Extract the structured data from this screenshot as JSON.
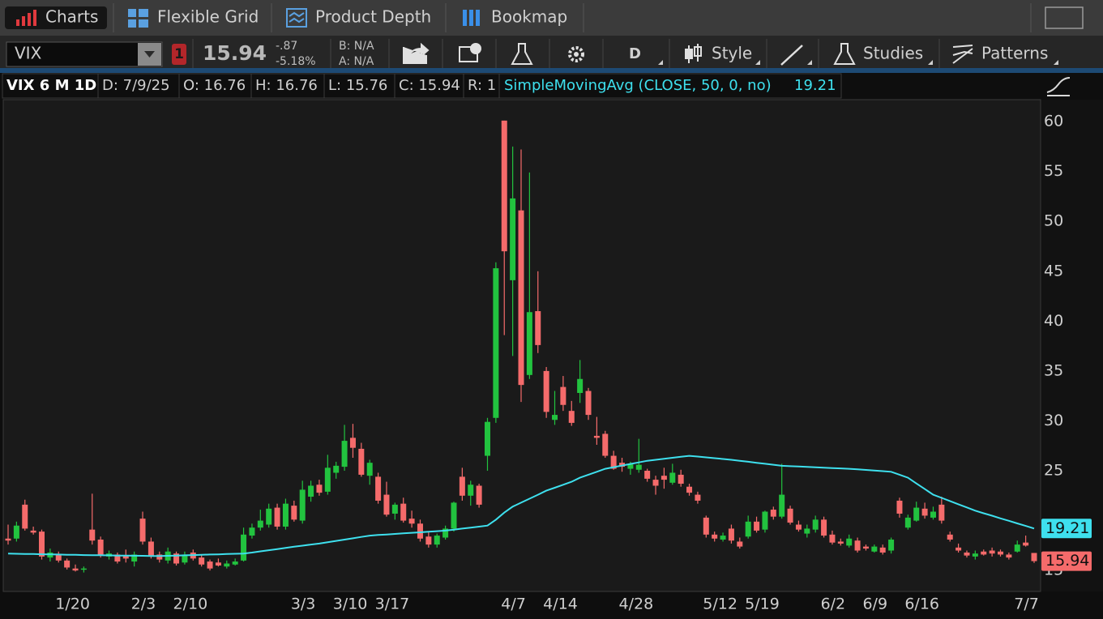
{
  "tabs": [
    "Charts",
    "Flexible Grid",
    "Product Depth",
    "Bookmap"
  ],
  "toolbar": {
    "symbol": "VIX",
    "alert_count": "1",
    "last": "15.94",
    "change": "-.87",
    "change_pct": "-5.18%",
    "bid": "B: N/A",
    "ask": "A: N/A",
    "aggregation": "D",
    "style": "Style",
    "studies": "Studies",
    "patterns": "Patterns"
  },
  "info": {
    "label": "VIX 6 M 1D",
    "date": "D: 7/9/25",
    "open": "O: 16.76",
    "high": "H: 16.76",
    "low": "L: 15.76",
    "close": "C: 15.94",
    "range": "R: 1",
    "study": "SimpleMovingAvg (CLOSE, 50, 0, no)",
    "study_value": "19.21"
  },
  "chart_data": {
    "type": "candlestick",
    "categories": [
      null,
      null,
      null,
      null,
      null,
      null,
      "1/20",
      null,
      null,
      null,
      null,
      null,
      null,
      null,
      null,
      "2/3",
      null,
      null,
      null,
      null,
      "2/10",
      null,
      null,
      null,
      null,
      null,
      null,
      null,
      null,
      null,
      null,
      null,
      null,
      null,
      "3/3",
      null,
      null,
      null,
      null,
      "3/10",
      null,
      null,
      null,
      null,
      "3/17",
      null,
      null,
      null,
      null,
      null,
      null,
      null,
      null,
      null,
      null,
      null,
      null,
      null,
      null,
      "4/7",
      null,
      null,
      null,
      null,
      "4/14",
      null,
      null,
      null,
      null,
      null,
      null,
      null,
      null,
      "4/28",
      null,
      null,
      null,
      null,
      null,
      null,
      null,
      null,
      null,
      "5/12",
      null,
      null,
      null,
      null,
      "5/19",
      null,
      null,
      null,
      null,
      null,
      null,
      null,
      null,
      "6/2",
      null,
      null,
      null,
      null,
      "6/9",
      null,
      null,
      null,
      null,
      "6/16",
      null,
      null,
      null,
      null,
      null,
      null,
      null,
      null,
      null,
      null,
      null,
      null,
      "7/7",
      null,
      null
    ],
    "open": [
      18.2,
      18.2,
      21.6,
      19.0,
      18.9,
      16.3,
      16.6,
      16.0,
      15.2,
      15.1,
      19.1,
      18.1,
      16.4,
      16.6,
      16.5,
      15.9,
      20.2,
      17.9,
      16.6,
      16.0,
      16.7,
      15.8,
      16.8,
      16.3,
      15.9,
      15.8,
      15.4,
      15.6,
      16.0,
      18.5,
      19.3,
      19.6,
      21.3,
      19.4,
      21.5,
      20.0,
      22.4,
      23.6,
      22.9,
      24.8,
      25.4,
      28.3,
      27.2,
      24.5,
      24.4,
      22.6,
      20.7,
      21.7,
      20.2,
      19.7,
      18.4,
      17.6,
      18.3,
      19.2,
      24.4,
      22.5,
      23.5,
      26.5,
      30.3,
      60.1,
      44.1,
      51.1,
      34.6,
      41.0,
      35.0,
      30.1,
      33.4,
      31.0,
      32.8,
      33.0,
      28.5,
      28.7,
      26.5,
      25.8,
      25.2,
      25.1,
      25.0,
      24.1,
      24.5,
      23.8,
      24.6,
      23.4,
      22.6,
      20.3,
      18.6,
      18.1,
      19.2,
      17.9,
      18.4,
      19.9,
      19.1,
      21.1,
      20.4,
      21.2,
      19.6,
      18.7,
      19.1,
      20.1,
      18.6,
      17.9,
      17.5,
      18.0,
      17.4,
      16.9,
      17.3,
      17.0,
      22.0,
      19.3,
      20.0,
      21.2,
      20.3,
      21.6,
      18.6,
      17.3,
      16.8,
      16.4,
      16.9,
      17.0,
      16.9,
      16.6,
      16.9,
      17.8,
      16.76
    ],
    "high": [
      19.6,
      19.9,
      22.1,
      19.4,
      19.1,
      17.2,
      16.9,
      16.2,
      15.6,
      15.4,
      22.7,
      18.4,
      17.0,
      16.8,
      17.1,
      16.9,
      20.9,
      18.3,
      16.9,
      17.3,
      16.9,
      16.9,
      17.1,
      16.6,
      16.1,
      16.2,
      16.0,
      16.2,
      19.3,
      19.7,
      21.1,
      21.7,
      21.7,
      22.2,
      22.0,
      24.0,
      24.0,
      24.1,
      26.6,
      25.9,
      29.6,
      29.7,
      27.8,
      26.1,
      24.8,
      23.9,
      21.8,
      22.3,
      21.0,
      20.1,
      18.9,
      18.7,
      19.5,
      21.9,
      25.3,
      24.0,
      23.7,
      30.3,
      45.9,
      60.1,
      57.5,
      57.2,
      54.9,
      45.0,
      35.4,
      33.0,
      34.5,
      32.0,
      36.1,
      33.3,
      30.4,
      29.0,
      27.0,
      26.3,
      25.9,
      28.2,
      25.2,
      24.5,
      25.3,
      25.7,
      25.1,
      23.7,
      22.9,
      20.5,
      18.9,
      18.8,
      19.6,
      18.3,
      20.5,
      20.4,
      21.0,
      21.4,
      25.7,
      21.5,
      20.0,
      19.6,
      20.5,
      20.4,
      19.0,
      18.2,
      18.6,
      18.3,
      17.6,
      17.6,
      17.6,
      18.3,
      22.3,
      20.6,
      21.9,
      21.8,
      21.4,
      22.4,
      18.9,
      17.7,
      17.0,
      17.0,
      17.1,
      17.3,
      17.1,
      16.8,
      18.0,
      18.5,
      16.76
    ],
    "low": [
      17.6,
      17.9,
      19.0,
      18.6,
      16.1,
      15.9,
      15.8,
      15.1,
      14.9,
      14.8,
      17.6,
      16.3,
      16.1,
      15.7,
      15.8,
      15.4,
      17.6,
      16.2,
      15.8,
      15.7,
      15.5,
      15.6,
      16.0,
      15.4,
      15.0,
      15.4,
      15.2,
      15.5,
      15.9,
      18.2,
      19.0,
      19.3,
      19.1,
      19.1,
      19.9,
      19.7,
      21.9,
      22.5,
      22.6,
      24.2,
      25.0,
      26.3,
      24.4,
      23.6,
      21.7,
      20.4,
      20.1,
      19.8,
      19.3,
      17.9,
      17.3,
      17.3,
      18.1,
      18.9,
      22.0,
      21.5,
      21.3,
      25.0,
      29.8,
      38.6,
      36.5,
      31.9,
      34.2,
      36.8,
      30.3,
      29.6,
      31.0,
      29.5,
      31.8,
      30.1,
      27.6,
      26.3,
      25.1,
      24.9,
      24.6,
      24.8,
      23.9,
      22.6,
      23.2,
      23.6,
      23.4,
      22.5,
      21.7,
      18.3,
      17.9,
      17.9,
      17.7,
      17.2,
      18.2,
      18.8,
      18.8,
      20.1,
      20.2,
      19.6,
      18.9,
      18.3,
      18.8,
      18.3,
      17.6,
      17.5,
      17.3,
      16.8,
      17.0,
      16.8,
      16.6,
      16.7,
      20.3,
      19.1,
      19.9,
      20.2,
      20.1,
      19.7,
      17.9,
      16.8,
      16.3,
      16.1,
      16.5,
      16.4,
      16.4,
      16.1,
      16.8,
      17.4,
      15.76
    ],
    "close": [
      18.0,
      19.5,
      19.2,
      18.8,
      16.4,
      16.8,
      16.0,
      15.3,
      15.0,
      15.2,
      18.0,
      16.5,
      16.7,
      15.9,
      16.2,
      16.6,
      17.9,
      16.5,
      16.1,
      16.9,
      15.7,
      16.6,
      16.2,
      15.6,
      15.2,
      15.5,
      15.7,
      15.9,
      18.6,
      19.3,
      20.0,
      21.2,
      19.4,
      21.7,
      20.1,
      23.1,
      23.5,
      22.8,
      25.3,
      25.5,
      28.0,
      27.3,
      24.6,
      25.8,
      22.0,
      20.6,
      21.6,
      20.0,
      19.7,
      18.2,
      17.6,
      18.5,
      19.2,
      21.8,
      22.5,
      23.6,
      21.6,
      29.9,
      45.3,
      47.0,
      52.3,
      33.6,
      40.9,
      37.6,
      30.9,
      30.6,
      31.6,
      29.8,
      34.2,
      30.6,
      28.3,
      26.5,
      25.2,
      25.4,
      25.7,
      25.6,
      24.2,
      23.5,
      24.1,
      24.8,
      23.7,
      22.8,
      22.0,
      18.6,
      18.2,
      18.5,
      18.0,
      17.4,
      19.9,
      19.0,
      20.9,
      20.4,
      22.6,
      19.8,
      19.1,
      19.2,
      20.1,
      18.5,
      17.8,
      17.7,
      18.2,
      17.0,
      17.2,
      17.4,
      16.8,
      18.1,
      20.7,
      20.3,
      21.3,
      20.5,
      20.9,
      20.0,
      18.1,
      17.0,
      16.5,
      16.7,
      16.6,
      16.7,
      16.6,
      16.3,
      17.6,
      17.5,
      15.94
    ],
    "up_color": "#22c33f",
    "down_color": "#f56b6b",
    "sma": {
      "color": "#3ee0ee",
      "values": [
        16.7,
        16.68,
        16.66,
        16.65,
        16.63,
        16.62,
        16.6,
        16.58,
        16.57,
        16.55,
        16.54,
        16.53,
        16.52,
        16.5,
        16.49,
        16.48,
        16.47,
        16.46,
        16.45,
        16.47,
        16.5,
        16.52,
        16.55,
        16.57,
        16.6,
        16.62,
        16.65,
        16.68,
        16.7,
        16.8,
        16.92,
        17.03,
        17.15,
        17.26,
        17.38,
        17.49,
        17.6,
        17.7,
        17.83,
        17.97,
        18.1,
        18.23,
        18.37,
        18.5,
        18.56,
        18.61,
        18.67,
        18.72,
        18.78,
        18.83,
        18.89,
        18.94,
        19.0,
        19.1,
        19.2,
        19.3,
        19.4,
        19.5,
        20.1,
        20.8,
        21.4,
        21.8,
        22.2,
        22.6,
        23.0,
        23.3,
        23.6,
        23.9,
        24.3,
        24.6,
        24.9,
        25.2,
        25.36,
        25.52,
        25.68,
        25.84,
        26.0,
        26.1,
        26.2,
        26.3,
        26.4,
        26.5,
        26.42,
        26.34,
        26.26,
        26.18,
        26.1,
        26.0,
        25.9,
        25.8,
        25.7,
        25.6,
        25.5,
        25.46,
        25.42,
        25.39,
        25.35,
        25.31,
        25.27,
        25.24,
        25.2,
        25.14,
        25.08,
        25.02,
        24.96,
        24.9,
        24.6,
        24.3,
        23.73,
        23.17,
        22.6,
        22.28,
        21.96,
        21.64,
        21.32,
        21.0,
        20.74,
        20.49,
        20.23,
        19.98,
        19.72,
        19.47,
        19.21
      ]
    },
    "ylim": [
      12.9,
      62.2
    ],
    "yticks": [
      15,
      25,
      30,
      35,
      40,
      45,
      50,
      55,
      60
    ]
  }
}
